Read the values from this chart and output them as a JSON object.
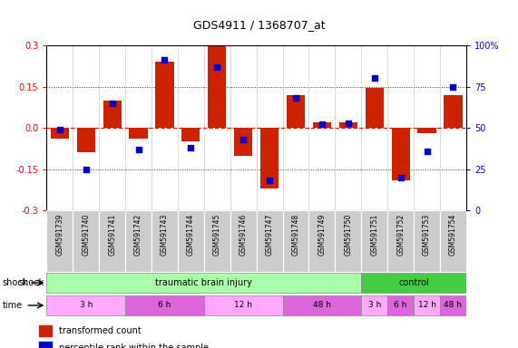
{
  "title": "GDS4911 / 1368707_at",
  "samples": [
    "GSM591739",
    "GSM591740",
    "GSM591741",
    "GSM591742",
    "GSM591743",
    "GSM591744",
    "GSM591745",
    "GSM591746",
    "GSM591747",
    "GSM591748",
    "GSM591749",
    "GSM591750",
    "GSM591751",
    "GSM591752",
    "GSM591753",
    "GSM591754"
  ],
  "bar_values": [
    -0.04,
    -0.09,
    0.1,
    -0.04,
    0.24,
    -0.05,
    0.295,
    -0.1,
    -0.22,
    0.12,
    0.02,
    0.02,
    0.145,
    -0.19,
    -0.02,
    0.12
  ],
  "dot_values": [
    49,
    25,
    65,
    37,
    91,
    38,
    87,
    43,
    18,
    68,
    52,
    53,
    80,
    20,
    36,
    75
  ],
  "ylim": [
    -0.3,
    0.3
  ],
  "yticks_left": [
    -0.3,
    -0.15,
    0.0,
    0.15,
    0.3
  ],
  "yticks_right": [
    0,
    25,
    50,
    75,
    100
  ],
  "bar_color": "#cc2200",
  "dot_color": "#0000cc",
  "zero_line_color": "#cc2200",
  "grid_lines": [
    -0.15,
    0.15
  ],
  "shock_groups": [
    {
      "label": "traumatic brain injury",
      "start": 0,
      "end": 12,
      "color": "#aaffaa"
    },
    {
      "label": "control",
      "start": 12,
      "end": 16,
      "color": "#44cc44"
    }
  ],
  "time_groups": [
    {
      "label": "3 h",
      "start": 0,
      "end": 3,
      "color": "#ffaaff"
    },
    {
      "label": "6 h",
      "start": 3,
      "end": 6,
      "color": "#dd66dd"
    },
    {
      "label": "12 h",
      "start": 6,
      "end": 9,
      "color": "#ffaaff"
    },
    {
      "label": "48 h",
      "start": 9,
      "end": 12,
      "color": "#dd66dd"
    },
    {
      "label": "3 h",
      "start": 12,
      "end": 13,
      "color": "#ffaaff"
    },
    {
      "label": "6 h",
      "start": 13,
      "end": 14,
      "color": "#dd66dd"
    },
    {
      "label": "12 h",
      "start": 14,
      "end": 15,
      "color": "#ffaaff"
    },
    {
      "label": "48 h",
      "start": 15,
      "end": 16,
      "color": "#dd66dd"
    }
  ],
  "bg_color": "#ffffff",
  "sample_bg": "#cccccc"
}
